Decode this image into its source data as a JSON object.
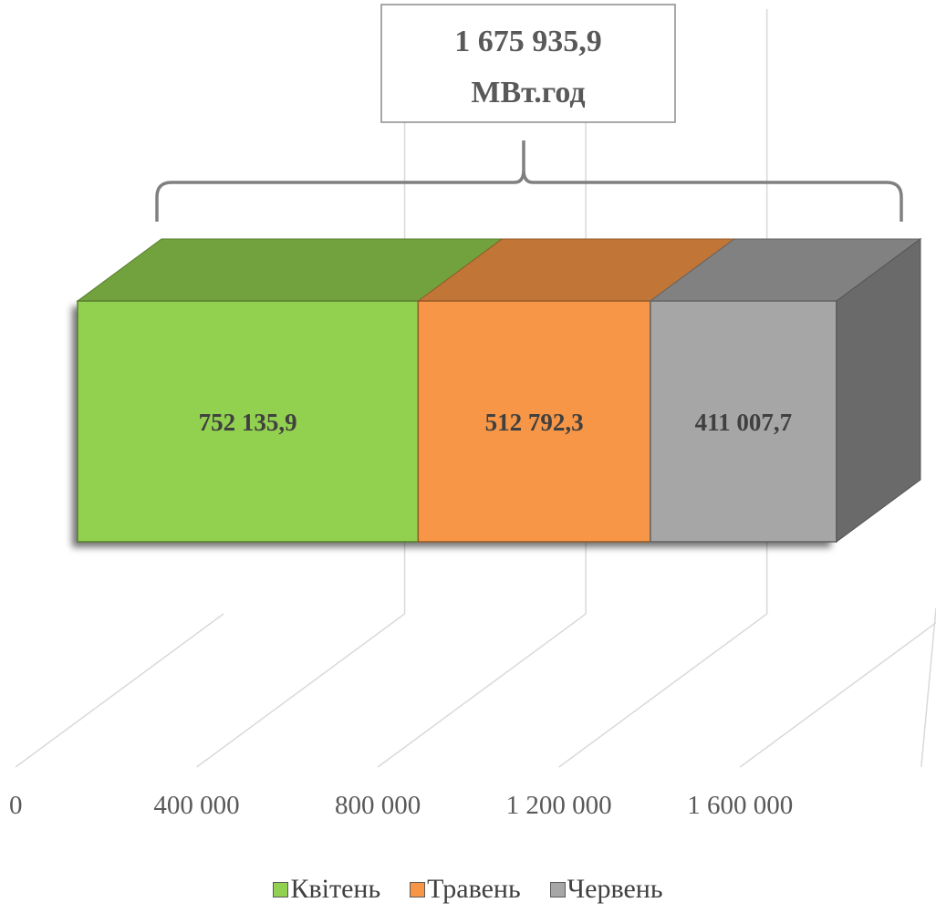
{
  "chart_data": {
    "type": "bar",
    "orientation": "horizontal",
    "stacked": true,
    "three_d": true,
    "categories": [
      ""
    ],
    "series": [
      {
        "name": "Квітень",
        "values": [
          752135.9
        ],
        "label": "752 135,9",
        "color": "#92d050"
      },
      {
        "name": "Травень",
        "values": [
          512792.3
        ],
        "label": "512 792,3",
        "color": "#f79646"
      },
      {
        "name": "Червень",
        "values": [
          411007.7
        ],
        "label": "411 007,7",
        "color": "#a6a6a6"
      }
    ],
    "total": {
      "value": 1675935.9,
      "line1": "1 675 935,9",
      "line2": "МВт.год"
    },
    "x_ticks": [
      {
        "value": 0,
        "label": "0"
      },
      {
        "value": 400000,
        "label": "400 000"
      },
      {
        "value": 800000,
        "label": "800 000"
      },
      {
        "value": 1200000,
        "label": "1 200 000"
      },
      {
        "value": 1600000,
        "label": "1 600 000"
      }
    ],
    "xlim": [
      0,
      2000000
    ],
    "grid": true,
    "legend_position": "bottom",
    "title": "",
    "xlabel": "",
    "ylabel": ""
  }
}
